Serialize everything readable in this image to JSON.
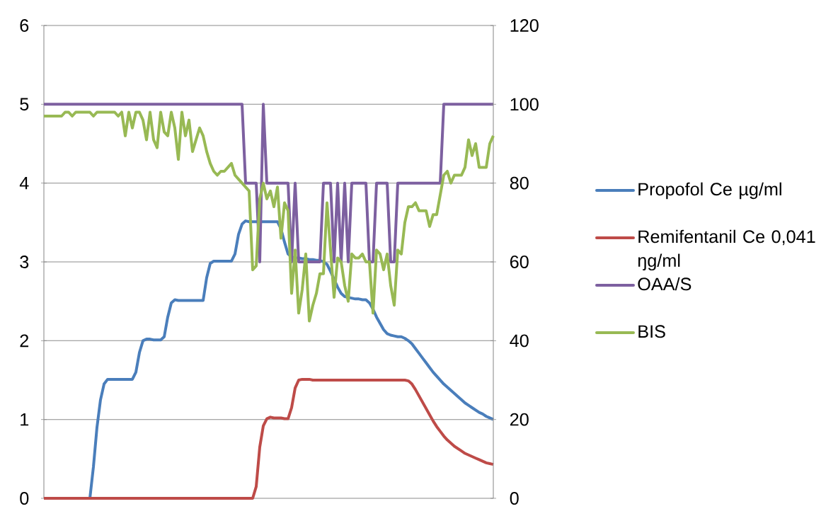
{
  "chart_data": {
    "type": "line",
    "categories": [
      null,
      null,
      null,
      null,
      null,
      null,
      null,
      null,
      null,
      null,
      null,
      null,
      null,
      null,
      null,
      null,
      null,
      null,
      null,
      null,
      null,
      null,
      null,
      null,
      null,
      null,
      null,
      null,
      null,
      null,
      null,
      null,
      null,
      null,
      null,
      null,
      null,
      null,
      null,
      null,
      null,
      null,
      null,
      null,
      null,
      null,
      null,
      null,
      null,
      null,
      null,
      null,
      null,
      null,
      null,
      null,
      null,
      null,
      null,
      null,
      null,
      null,
      null,
      null,
      null,
      null,
      null,
      null,
      null,
      null,
      null,
      null,
      null,
      null,
      null,
      null,
      null,
      null,
      null,
      null,
      null,
      null,
      null,
      null,
      null,
      null,
      null,
      null,
      null,
      null,
      null,
      null,
      null,
      null,
      null,
      null,
      null,
      null,
      null,
      null,
      null,
      null,
      null,
      null,
      null,
      null,
      null,
      null,
      null,
      null,
      null,
      null,
      null,
      null,
      null,
      null,
      null,
      null,
      null,
      null,
      null,
      null,
      null,
      null,
      null,
      null,
      null,
      null
    ],
    "series": [
      {
        "name": "Propofol Ce  µg/ml",
        "color": "#4a7ebb",
        "values": [
          null,
          null,
          null,
          null,
          null,
          null,
          null,
          null,
          null,
          null,
          null,
          null,
          null,
          0,
          0.4,
          0.9,
          1.25,
          1.45,
          1.51,
          1.51,
          1.51,
          1.51,
          1.51,
          1.51,
          1.51,
          1.51,
          1.6,
          1.85,
          2.0,
          2.02,
          2.02,
          2.01,
          2.01,
          2.01,
          2.05,
          2.3,
          2.48,
          2.52,
          2.51,
          2.51,
          2.51,
          2.51,
          2.51,
          2.51,
          2.51,
          2.51,
          2.8,
          2.98,
          3.01,
          3.01,
          3.01,
          3.01,
          3.01,
          3.01,
          3.1,
          3.35,
          3.48,
          3.52,
          3.51,
          3.51,
          3.51,
          3.51,
          3.51,
          3.51,
          3.51,
          3.51,
          3.51,
          3.42,
          3.25,
          3.1,
          3.06,
          3.05,
          3.05,
          3.04,
          3.04,
          3.03,
          3.03,
          3.02,
          3.02,
          3.0,
          2.97,
          2.88,
          2.78,
          2.68,
          2.6,
          2.56,
          2.55,
          2.54,
          2.53,
          2.53,
          2.52,
          2.52,
          2.48,
          2.4,
          2.3,
          2.22,
          2.14,
          2.09,
          2.07,
          2.06,
          2.05,
          2.05,
          2.03,
          2.0,
          1.96,
          1.9,
          1.84,
          1.78,
          1.72,
          1.66,
          1.6,
          1.55,
          1.5,
          1.45,
          1.41,
          1.37,
          1.33,
          1.29,
          1.25,
          1.21,
          1.18,
          1.15,
          1.12,
          1.09,
          1.07,
          1.04,
          1.02,
          1.0
        ]
      },
      {
        "name": "Remifentanil Ce 0,041 ŋg/ml",
        "color": "#be4b48",
        "values": [
          0,
          0,
          0,
          0,
          0,
          0,
          0,
          0,
          0,
          0,
          0,
          0,
          0,
          0,
          0,
          0,
          0,
          0,
          0,
          0,
          0,
          0,
          0,
          0,
          0,
          0,
          0,
          0,
          0,
          0,
          0,
          0,
          0,
          0,
          0,
          0,
          0,
          0,
          0,
          0,
          0,
          0,
          0,
          0,
          0,
          0,
          0,
          0,
          0,
          0,
          0,
          0,
          0,
          0,
          0,
          0,
          0,
          0,
          0,
          0,
          0.15,
          0.65,
          0.92,
          1.01,
          1.03,
          1.02,
          1.02,
          1.02,
          1.01,
          1.01,
          1.15,
          1.4,
          1.5,
          1.51,
          1.51,
          1.51,
          1.5,
          1.5,
          1.5,
          1.5,
          1.5,
          1.5,
          1.5,
          1.5,
          1.5,
          1.5,
          1.5,
          1.5,
          1.5,
          1.5,
          1.5,
          1.5,
          1.5,
          1.5,
          1.5,
          1.5,
          1.5,
          1.5,
          1.5,
          1.5,
          1.5,
          1.5,
          1.5,
          1.49,
          1.45,
          1.38,
          1.3,
          1.22,
          1.14,
          1.06,
          0.98,
          0.91,
          0.85,
          0.79,
          0.74,
          0.7,
          0.66,
          0.63,
          0.6,
          0.57,
          0.55,
          0.53,
          0.51,
          0.49,
          0.47,
          0.45,
          0.44,
          0.43
        ]
      },
      {
        "name": "OAA/S",
        "color": "#7d60a0",
        "values": [
          5,
          5,
          5,
          5,
          5,
          5,
          5,
          5,
          5,
          5,
          5,
          5,
          5,
          5,
          5,
          5,
          5,
          5,
          5,
          5,
          5,
          5,
          5,
          5,
          5,
          5,
          5,
          5,
          5,
          5,
          5,
          5,
          5,
          5,
          5,
          5,
          5,
          5,
          5,
          5,
          5,
          5,
          5,
          5,
          5,
          5,
          5,
          5,
          5,
          5,
          5,
          5,
          5,
          5,
          5,
          5,
          5,
          4,
          4,
          4,
          4,
          3,
          5,
          4,
          4,
          4,
          4,
          4,
          4,
          4,
          3,
          4,
          3,
          3,
          3,
          3,
          3,
          3,
          3,
          4,
          4,
          4,
          3,
          4,
          3,
          4,
          3,
          4,
          4,
          4,
          4,
          4,
          3,
          3,
          4,
          4,
          4,
          4,
          3,
          3,
          4,
          4,
          4,
          4,
          4,
          4,
          4,
          4,
          4,
          4,
          4,
          4,
          4,
          5,
          5,
          5,
          5,
          5,
          5,
          5,
          5,
          5,
          5,
          5,
          5,
          5,
          5,
          5
        ]
      },
      {
        "name": "BIS",
        "color": "#98b954",
        "axis": "y2",
        "values": [
          97,
          97,
          97,
          97,
          97,
          97,
          98,
          98,
          97,
          98,
          98,
          98,
          98,
          98,
          97,
          98,
          98,
          98,
          98,
          98,
          98,
          97,
          98,
          92,
          98,
          94,
          98,
          98,
          96,
          91,
          98,
          91,
          89,
          98,
          93,
          92,
          98,
          94,
          86,
          98,
          92,
          96,
          88,
          91,
          94,
          92,
          88,
          85,
          83,
          82,
          83,
          83,
          84,
          85,
          82,
          81,
          80,
          79,
          78,
          58,
          59,
          76,
          80,
          76,
          78,
          74,
          79,
          66,
          75,
          73,
          52,
          63,
          47,
          53,
          62,
          45,
          49,
          52,
          57,
          57,
          75,
          63,
          51,
          61,
          60,
          54,
          50,
          62,
          61,
          61,
          62,
          60,
          60,
          47,
          63,
          62,
          58,
          62,
          54,
          49,
          63,
          62,
          70,
          74,
          74,
          75,
          73,
          73,
          73,
          69,
          72,
          72,
          77,
          82,
          83,
          80,
          82,
          82,
          82,
          84,
          91,
          87,
          90,
          84,
          84,
          84,
          90,
          92
        ]
      }
    ],
    "ylim": [
      0,
      6
    ],
    "yticks": [
      0,
      1,
      2,
      3,
      4,
      5,
      6
    ],
    "y2lim": [
      0,
      120
    ],
    "y2ticks": [
      0,
      20,
      40,
      60,
      80,
      100,
      120
    ],
    "grid": "y",
    "legend": "right"
  }
}
